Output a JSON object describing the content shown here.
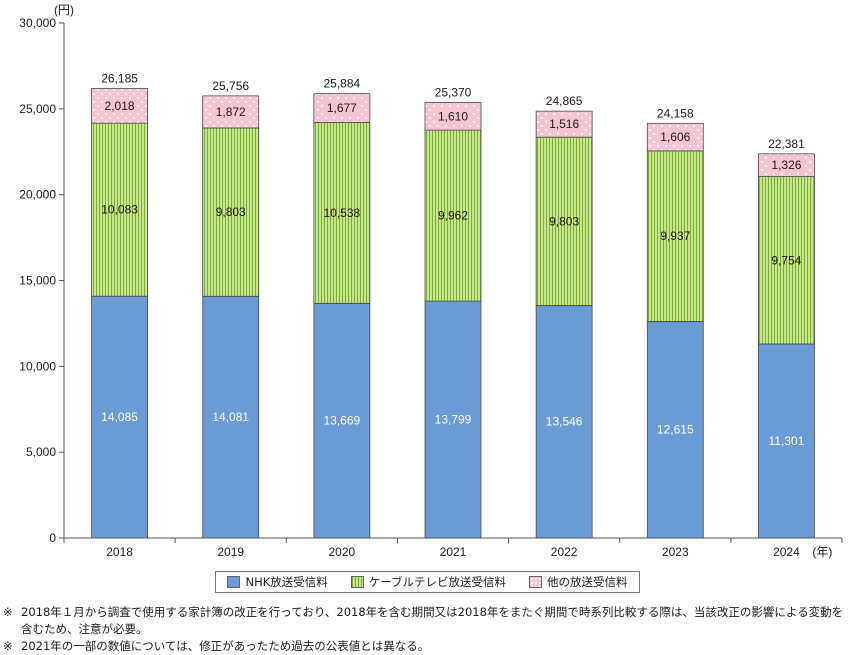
{
  "chart_data": {
    "type": "bar",
    "stacked": true,
    "categories": [
      "2018",
      "2019",
      "2020",
      "2021",
      "2022",
      "2023",
      "2024"
    ],
    "series": [
      {
        "name": "NHK放送受信料",
        "values": [
          14085,
          14081,
          13669,
          13799,
          13546,
          12615,
          11301
        ],
        "labels": [
          "14,085",
          "14,081",
          "13,669",
          "13,799",
          "13,546",
          "12,615",
          "11,301"
        ],
        "color": "#6a9bd4",
        "pattern": "none"
      },
      {
        "name": "ケーブルテレビ放送受信料",
        "values": [
          10083,
          9803,
          10538,
          9962,
          9803,
          9937,
          9754
        ],
        "labels": [
          "10,083",
          "9,803",
          "10,538",
          "9,962",
          "9,803",
          "9,937",
          "9,754"
        ],
        "color": "#c9e58c",
        "pattern": "vertical-stripes",
        "pattern_color": "#7ab03e"
      },
      {
        "name": "他の放送受信料",
        "values": [
          2018,
          1872,
          1677,
          1610,
          1516,
          1606,
          1326
        ],
        "labels": [
          "2,018",
          "1,872",
          "1,677",
          "1,610",
          "1,516",
          "1,606",
          "1,326"
        ],
        "color": "#f7c4d1",
        "pattern": "dots",
        "pattern_color": "#ffffff"
      }
    ],
    "totals": [
      26185,
      25756,
      25884,
      25370,
      24865,
      24158,
      22381
    ],
    "total_labels": [
      "26,185",
      "25,756",
      "25,884",
      "25,370",
      "24,865",
      "24,158",
      "22,381"
    ],
    "y_unit": "(円)",
    "x_unit": "(年)",
    "ylim": [
      0,
      30000
    ],
    "yticks": [
      0,
      5000,
      10000,
      15000,
      20000,
      25000,
      30000
    ],
    "ytick_labels": [
      "0",
      "5,000",
      "10,000",
      "15,000",
      "20,000",
      "25,000",
      "30,000"
    ],
    "grid": false,
    "legend_position": "bottom"
  },
  "notes": [
    {
      "mark": "※",
      "text": "2018年１月から調査で使用する家計簿の改正を行っており、2018年を含む期間又は2018年をまたぐ期間で時系列比較する際は、当該改正の影響による変動を含むため、注意が必要。"
    },
    {
      "mark": "※",
      "text": "2021年の一部の数値については、修正があったため過去の公表値とは異なる。"
    }
  ]
}
